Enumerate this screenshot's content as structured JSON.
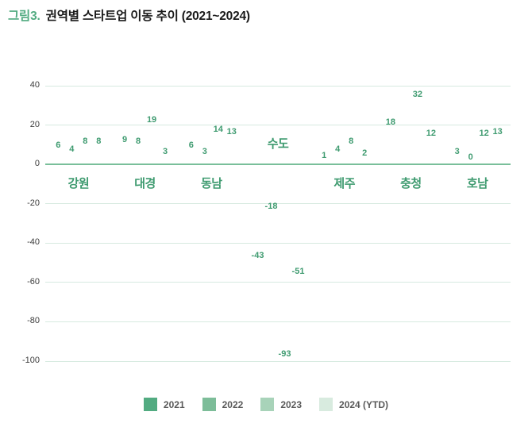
{
  "title": {
    "prefix": "그림3.",
    "text": "권역별 스타트업 이동 추이 (2021~2024)"
  },
  "colors": {
    "title_prefix": "#52ab81",
    "title_text": "#1a1a1a",
    "series": [
      "#52ab81",
      "#7dbd99",
      "#a8d3b9",
      "#d8ebdf"
    ],
    "grid_line": "#d7eae0",
    "zero_line": "#79bf9a",
    "value_label": "#3f9b70",
    "region_label": "#3f9b70",
    "axis_tick": "#3c3c3c",
    "legend_text": "#595959",
    "background": "#ffffff"
  },
  "chart_data": {
    "type": "bar",
    "title": "권역별 스타트업 이동 추이 (2021~2024)",
    "categories": [
      "강원",
      "대경",
      "동남",
      "수도",
      "제주",
      "충청",
      "호남"
    ],
    "series": [
      {
        "name": "2021",
        "values": [
          6,
          9,
          6,
          -43,
          1,
          18,
          3
        ],
        "labels": [
          "6",
          "9",
          "6",
          "-43",
          "1",
          "18",
          "3"
        ]
      },
      {
        "name": "2022",
        "values": [
          4,
          8,
          3,
          -18,
          4,
          -2,
          0
        ],
        "labels": [
          "4",
          "8",
          "3",
          "-18",
          "4",
          "",
          "0"
        ]
      },
      {
        "name": "2023",
        "values": [
          8,
          19,
          14,
          -93,
          8,
          32,
          12
        ],
        "labels": [
          "8",
          "19",
          "14",
          "-93",
          "8",
          "32",
          "12"
        ]
      },
      {
        "name": "2024 (YTD)",
        "values": [
          8,
          3,
          13,
          -51,
          2,
          12,
          13
        ],
        "labels": [
          "8",
          "3",
          "13",
          "-51",
          "2",
          "12",
          "13"
        ]
      }
    ],
    "ylim": [
      -100,
      40
    ],
    "yticks": [
      40,
      20,
      0,
      -20,
      -40,
      -60,
      -80,
      -100
    ],
    "grid": true,
    "legend_position": "bottom"
  }
}
